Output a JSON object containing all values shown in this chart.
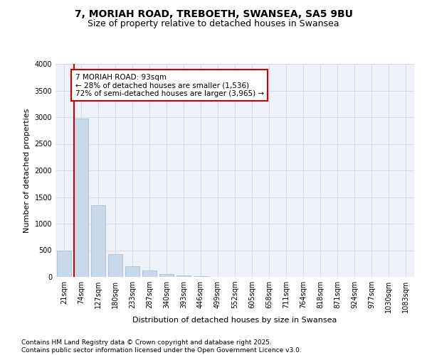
{
  "title_line1": "7, MORIAH ROAD, TREBOETH, SWANSEA, SA5 9BU",
  "title_line2": "Size of property relative to detached houses in Swansea",
  "xlabel": "Distribution of detached houses by size in Swansea",
  "ylabel": "Number of detached properties",
  "categories": [
    "21sqm",
    "74sqm",
    "127sqm",
    "180sqm",
    "233sqm",
    "287sqm",
    "340sqm",
    "393sqm",
    "446sqm",
    "499sqm",
    "552sqm",
    "605sqm",
    "658sqm",
    "711sqm",
    "764sqm",
    "818sqm",
    "871sqm",
    "924sqm",
    "977sqm",
    "1030sqm",
    "1083sqm"
  ],
  "values": [
    500,
    2980,
    1350,
    425,
    195,
    120,
    50,
    25,
    10,
    3,
    0,
    0,
    0,
    0,
    0,
    0,
    0,
    0,
    0,
    0,
    0
  ],
  "bar_color": "#c9d9ec",
  "bar_edge_color": "#a0b8d8",
  "grid_color": "#d0d8e8",
  "background_color": "#eef2f8",
  "annotation_line1": "7 MORIAH ROAD: 93sqm",
  "annotation_line2": "← 28% of detached houses are smaller (1,536)",
  "annotation_line3": "72% of semi-detached houses are larger (3,965) →",
  "vline_color": "#cc0000",
  "annotation_box_color": "#cc0000",
  "ylim": [
    0,
    4000
  ],
  "yticks": [
    0,
    500,
    1000,
    1500,
    2000,
    2500,
    3000,
    3500,
    4000
  ],
  "footer_line1": "Contains HM Land Registry data © Crown copyright and database right 2025.",
  "footer_line2": "Contains public sector information licensed under the Open Government Licence v3.0.",
  "title_fontsize": 10,
  "subtitle_fontsize": 9,
  "axis_label_fontsize": 8,
  "tick_fontsize": 7,
  "annotation_fontsize": 7.5,
  "footer_fontsize": 6.5
}
